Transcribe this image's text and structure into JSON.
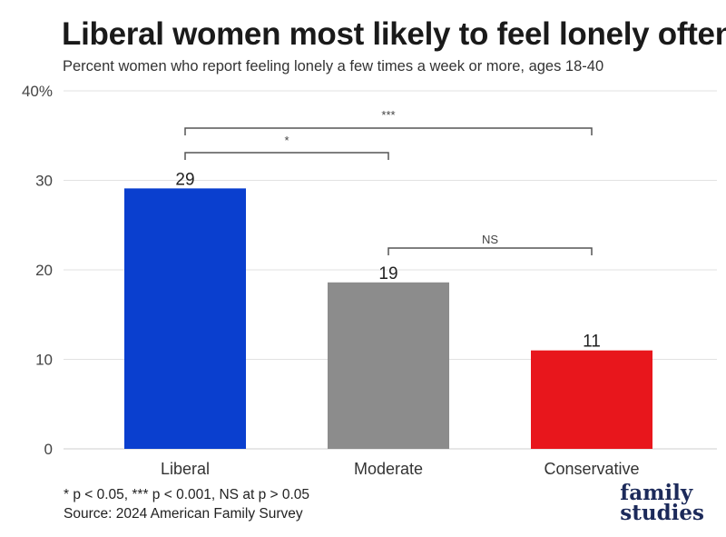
{
  "title": "Liberal women most likely to feel lonely often",
  "subtitle": "Percent women who report feeling lonely a few times a week or more, ages 18-40",
  "chart_data": {
    "type": "bar",
    "categories": [
      "Liberal",
      "Moderate",
      "Conservative"
    ],
    "values": [
      29.1,
      18.6,
      11.0
    ],
    "value_labels": [
      "29",
      "19",
      "11"
    ],
    "colors": [
      "#0a3fcf",
      "#8c8c8c",
      "#e8161c"
    ],
    "ylim": [
      0,
      40
    ],
    "yticks": [
      0,
      10,
      20,
      30,
      40
    ],
    "ytick_labels": [
      "0",
      "10",
      "20",
      "30",
      "40%"
    ],
    "grid": true,
    "significance": [
      {
        "from": "Liberal",
        "to": "Conservative",
        "label": "***"
      },
      {
        "from": "Liberal",
        "to": "Moderate",
        "label": "*"
      },
      {
        "from": "Moderate",
        "to": "Conservative",
        "label": "NS"
      }
    ]
  },
  "footnote": {
    "line1": "* p < 0.05, *** p < 0.001, NS at p > 0.05",
    "line2": "Source: 2024 American Family Survey"
  },
  "logo": {
    "line1": "family",
    "line2": "studies"
  }
}
